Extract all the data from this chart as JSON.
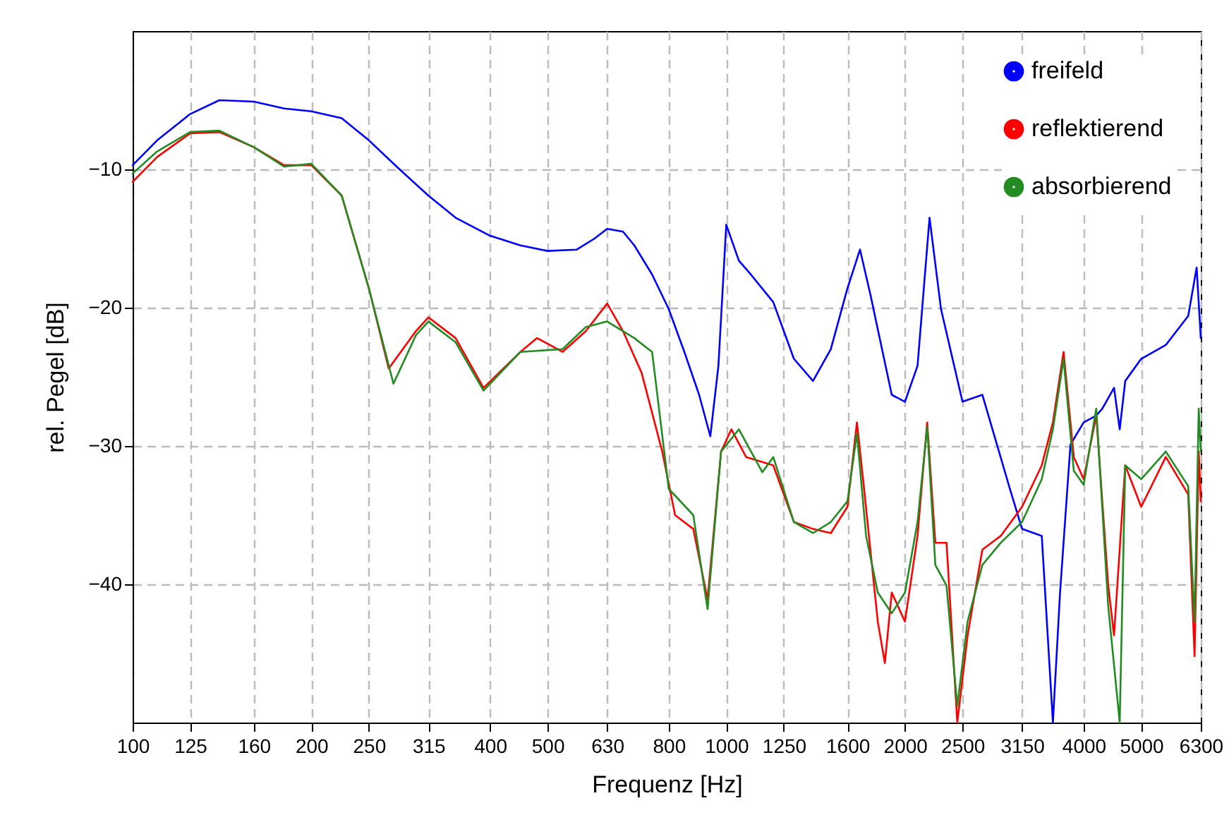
{
  "chart_data": {
    "type": "line",
    "xlabel": "Frequenz [Hz]",
    "ylabel": "rel. Pegel [dB]",
    "log": "x",
    "grid": true,
    "legend": "top right",
    "line_style": "solid",
    "marker": "none",
    "xlim": [
      100,
      6300
    ],
    "xticks": [
      100,
      125,
      160,
      200,
      250,
      315,
      400,
      500,
      630,
      800,
      1000,
      1250,
      1600,
      2000,
      2500,
      3150,
      4000,
      5000,
      6300
    ],
    "ylim": [
      -50,
      0
    ],
    "yticks": [
      -10,
      -20,
      -30,
      -40
    ],
    "series": [
      {
        "name": "freifeld",
        "color": "#0000ff",
        "x": [
          100,
          110,
          125,
          140,
          160,
          180,
          200,
          225,
          250,
          280,
          315,
          350,
          400,
          450,
          500,
          560,
          600,
          630,
          670,
          700,
          750,
          800,
          850,
          900,
          940,
          970,
          1000,
          1050,
          1100,
          1200,
          1300,
          1400,
          1500,
          1600,
          1680,
          1750,
          1900,
          2000,
          2100,
          2200,
          2300,
          2500,
          2700,
          3000,
          3150,
          3400,
          3550,
          3650,
          3800,
          4000,
          4200,
          4300,
          4500,
          4600,
          4700,
          5000,
          5500,
          6000,
          6200,
          6300
        ],
        "values": [
          -9.7,
          -7.9,
          -6.0,
          -5.0,
          -5.1,
          -5.6,
          -5.8,
          -6.3,
          -7.9,
          -9.9,
          -11.9,
          -13.5,
          -14.8,
          -15.5,
          -15.9,
          -15.8,
          -15.0,
          -14.3,
          -14.5,
          -15.5,
          -17.6,
          -20.1,
          -23.2,
          -26.3,
          -29.3,
          -24.2,
          -14.0,
          -16.6,
          -17.6,
          -19.6,
          -23.7,
          -25.3,
          -23.0,
          -18.6,
          -15.8,
          -19.1,
          -26.3,
          -26.8,
          -24.2,
          -13.5,
          -20.1,
          -26.8,
          -26.3,
          -33.0,
          -36.0,
          -36.5,
          -50.0,
          -40.6,
          -29.9,
          -28.3,
          -27.8,
          -27.3,
          -25.8,
          -28.8,
          -25.3,
          -23.7,
          -22.7,
          -20.6,
          -17.1,
          -22.2
        ]
      },
      {
        "name": "reflektierend",
        "color": "#ff0000",
        "x": [
          100,
          110,
          125,
          140,
          160,
          180,
          200,
          225,
          250,
          270,
          300,
          315,
          350,
          390,
          450,
          480,
          530,
          580,
          630,
          670,
          720,
          780,
          820,
          880,
          930,
          980,
          1020,
          1080,
          1200,
          1300,
          1400,
          1500,
          1600,
          1660,
          1700,
          1800,
          1850,
          1900,
          2000,
          2100,
          2180,
          2250,
          2350,
          2450,
          2550,
          2700,
          2900,
          3150,
          3400,
          3550,
          3700,
          3850,
          4000,
          4200,
          4400,
          4500,
          4700,
          5000,
          5500,
          6000,
          6150,
          6250,
          6300
        ],
        "values": [
          -10.9,
          -9.1,
          -7.4,
          -7.3,
          -8.4,
          -9.7,
          -9.7,
          -11.9,
          -18.6,
          -24.4,
          -21.7,
          -20.7,
          -22.2,
          -25.8,
          -23.2,
          -22.2,
          -23.2,
          -21.7,
          -19.7,
          -21.7,
          -24.7,
          -30.4,
          -35.0,
          -36.0,
          -41.1,
          -30.4,
          -28.8,
          -30.8,
          -31.4,
          -35.5,
          -36.0,
          -36.3,
          -34.4,
          -28.3,
          -32.4,
          -42.7,
          -45.7,
          -40.6,
          -42.7,
          -36.5,
          -28.3,
          -37.0,
          -37.0,
          -50.0,
          -43.7,
          -37.5,
          -36.5,
          -34.4,
          -31.4,
          -28.3,
          -23.2,
          -30.8,
          -32.4,
          -27.8,
          -40.1,
          -43.7,
          -31.4,
          -34.4,
          -30.8,
          -33.5,
          -45.2,
          -30.4,
          -34.0
        ]
      },
      {
        "name": "absorbierend",
        "color": "#228b22",
        "x": [
          100,
          110,
          125,
          140,
          160,
          180,
          200,
          225,
          250,
          275,
          300,
          315,
          350,
          390,
          450,
          530,
          580,
          630,
          700,
          750,
          800,
          880,
          930,
          980,
          1050,
          1150,
          1200,
          1300,
          1400,
          1500,
          1600,
          1660,
          1720,
          1800,
          1900,
          2000,
          2100,
          2180,
          2250,
          2350,
          2450,
          2550,
          2700,
          2900,
          3150,
          3400,
          3550,
          3700,
          3850,
          4000,
          4200,
          4400,
          4600,
          4700,
          5000,
          5500,
          6000,
          6150,
          6250,
          6300
        ],
        "values": [
          -10.3,
          -8.7,
          -7.3,
          -7.2,
          -8.4,
          -9.8,
          -9.6,
          -11.9,
          -18.6,
          -25.5,
          -22.0,
          -21.0,
          -22.5,
          -26.0,
          -23.2,
          -23.0,
          -21.4,
          -21.0,
          -22.2,
          -23.2,
          -33.1,
          -35.0,
          -41.8,
          -30.4,
          -28.8,
          -31.9,
          -30.8,
          -35.5,
          -36.3,
          -35.5,
          -34.0,
          -29.1,
          -36.5,
          -40.6,
          -42.1,
          -40.6,
          -35.5,
          -28.6,
          -38.6,
          -40.1,
          -48.8,
          -42.7,
          -38.6,
          -37.0,
          -35.5,
          -32.4,
          -28.8,
          -23.7,
          -31.8,
          -32.8,
          -27.3,
          -41.6,
          -50.0,
          -31.4,
          -32.4,
          -30.4,
          -32.9,
          -42.7,
          -27.3,
          -30.4
        ]
      }
    ]
  }
}
